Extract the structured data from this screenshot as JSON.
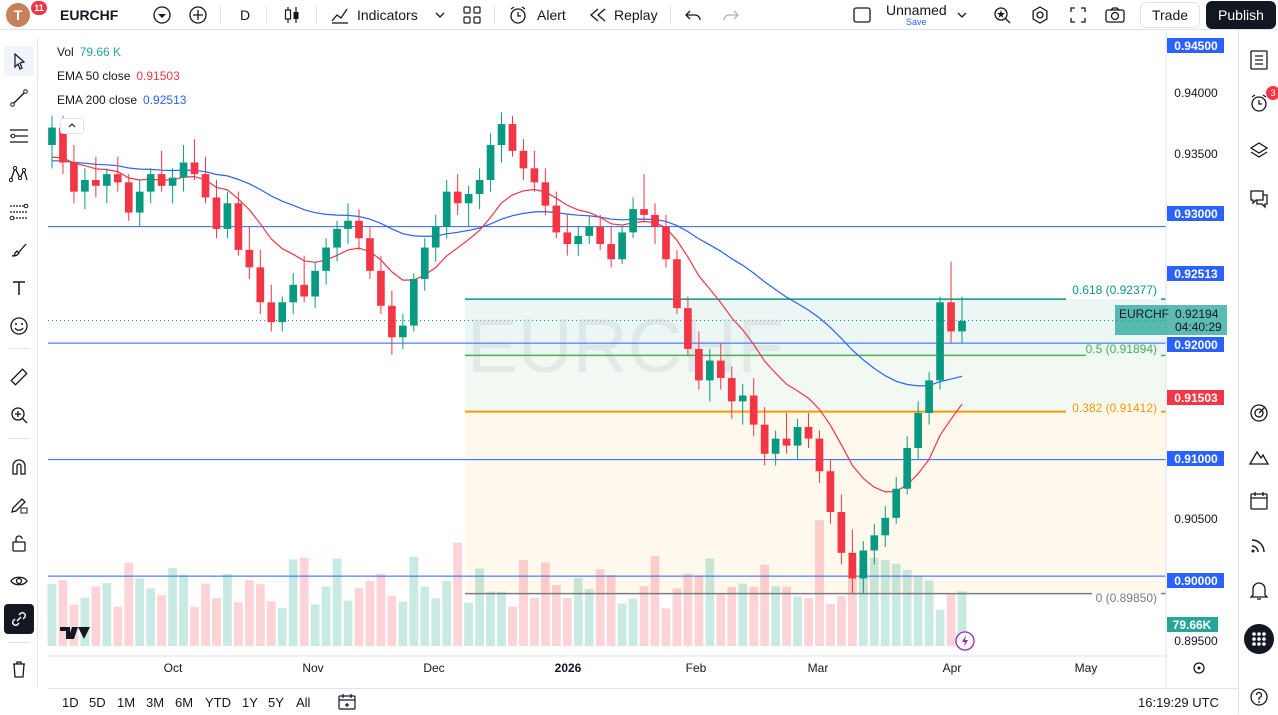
{
  "header": {
    "avatar_letter": "T",
    "notification_count": "11",
    "symbol": "EURCHF",
    "interval": "D",
    "indicators_label": "Indicators",
    "alert_label": "Alert",
    "replay_label": "Replay",
    "layout_name": "Unnamed",
    "layout_save": "Save",
    "trade_label": "Trade",
    "publish_label": "Publish"
  },
  "legend": {
    "vol_label": "Vol",
    "vol_value": "79.66 K",
    "ema50_label": "EMA 50 close",
    "ema50_value": "0.91503",
    "ema200_label": "EMA 200 close",
    "ema200_value": "0.92513"
  },
  "right_toolbar": {
    "alerts_badge": "3"
  },
  "watermark": "EURCHF",
  "price_axis": {
    "plain_labels": [
      "0.94000",
      "0.93500",
      "0.90500",
      "0.89500"
    ],
    "hline_labels": [
      "0.94500",
      "0.93000",
      "0.92000",
      "0.91000",
      "0.90000"
    ],
    "ema200_tag": "0.92513",
    "ema50_tag": "0.91503",
    "last_price_symbol": "EURCHF",
    "last_price": "0.92194",
    "countdown": "04:40:29",
    "volume_tag": "79.66K"
  },
  "fib_labels": {
    "f618": "0.618 (0.92377)",
    "f50": "0.5 (0.91894)",
    "f382": "0.382 (0.91412)",
    "f0": "0 (0.89850)"
  },
  "time_axis": [
    "Oct",
    "Nov",
    "Dec",
    "2026",
    "Feb",
    "Mar",
    "Apr",
    "May"
  ],
  "bottom_bar": {
    "ranges": [
      "1D",
      "5D",
      "1M",
      "3M",
      "6M",
      "YTD",
      "1Y",
      "5Y",
      "All"
    ],
    "clock": "16:19:29 UTC"
  },
  "colors": {
    "up": "#089981",
    "down": "#f23645",
    "ema50": "#f23645",
    "ema200": "#2962ff",
    "hline": "#2962ff",
    "fib618": "#089981",
    "fib50": "#4caf50",
    "fib382": "#ff9800",
    "fib0": "#787b86"
  },
  "chart_data": {
    "type": "candlestick",
    "symbol": "EURCHF",
    "interval": "1D",
    "y_range": [
      0.894,
      0.9455
    ],
    "x_months": [
      "Oct",
      "Nov",
      "Dec",
      "2026",
      "Feb",
      "Mar",
      "Apr",
      "May"
    ],
    "horizontal_levels": [
      0.945,
      0.93,
      0.92,
      0.91,
      0.9
    ],
    "fibonacci": [
      {
        "level": "0.618",
        "price": 0.92377
      },
      {
        "level": "0.5",
        "price": 0.91894
      },
      {
        "level": "0.382",
        "price": 0.91412
      },
      {
        "level": "0",
        "price": 0.8985
      }
    ],
    "ema50_last": 0.91503,
    "ema200_last": 0.92513,
    "last_price": 0.92194,
    "last_volume": "79.66K",
    "candles_approx": [
      [
        0.937,
        0.9395,
        0.935,
        0.9385
      ],
      [
        0.9385,
        0.9395,
        0.9345,
        0.9355
      ],
      [
        0.9355,
        0.937,
        0.932,
        0.933
      ],
      [
        0.933,
        0.935,
        0.9315,
        0.934
      ],
      [
        0.934,
        0.936,
        0.9325,
        0.9335
      ],
      [
        0.9335,
        0.935,
        0.932,
        0.9345
      ],
      [
        0.9345,
        0.936,
        0.933,
        0.9338
      ],
      [
        0.9338,
        0.9345,
        0.9305,
        0.9312
      ],
      [
        0.9312,
        0.934,
        0.93,
        0.933
      ],
      [
        0.933,
        0.935,
        0.932,
        0.9345
      ],
      [
        0.9345,
        0.9365,
        0.933,
        0.9335
      ],
      [
        0.9335,
        0.935,
        0.932,
        0.9342
      ],
      [
        0.9342,
        0.937,
        0.933,
        0.9355
      ],
      [
        0.9355,
        0.9375,
        0.934,
        0.9345
      ],
      [
        0.9345,
        0.936,
        0.932,
        0.9325
      ],
      [
        0.9325,
        0.934,
        0.929,
        0.9298
      ],
      [
        0.9298,
        0.933,
        0.929,
        0.932
      ],
      [
        0.932,
        0.933,
        0.9275,
        0.928
      ],
      [
        0.928,
        0.93,
        0.9255,
        0.9265
      ],
      [
        0.9265,
        0.928,
        0.9225,
        0.9235
      ],
      [
        0.9235,
        0.925,
        0.921,
        0.9218
      ],
      [
        0.9218,
        0.924,
        0.921,
        0.9235
      ],
      [
        0.9235,
        0.926,
        0.9225,
        0.925
      ],
      [
        0.925,
        0.9275,
        0.9235,
        0.924
      ],
      [
        0.924,
        0.927,
        0.923,
        0.9262
      ],
      [
        0.9262,
        0.929,
        0.925,
        0.9282
      ],
      [
        0.9282,
        0.9305,
        0.927,
        0.9298
      ],
      [
        0.9298,
        0.932,
        0.9285,
        0.9305
      ],
      [
        0.9305,
        0.9315,
        0.928,
        0.929
      ],
      [
        0.929,
        0.93,
        0.9255,
        0.9262
      ],
      [
        0.9262,
        0.9275,
        0.9225,
        0.9232
      ],
      [
        0.9232,
        0.9245,
        0.919,
        0.9205
      ],
      [
        0.9205,
        0.9225,
        0.9195,
        0.9215
      ],
      [
        0.9215,
        0.926,
        0.921,
        0.9255
      ],
      [
        0.9255,
        0.929,
        0.9245,
        0.9282
      ],
      [
        0.9282,
        0.931,
        0.927,
        0.93
      ],
      [
        0.93,
        0.934,
        0.929,
        0.933
      ],
      [
        0.933,
        0.9345,
        0.931,
        0.932
      ],
      [
        0.932,
        0.9335,
        0.93,
        0.9328
      ],
      [
        0.9328,
        0.935,
        0.9315,
        0.934
      ],
      [
        0.934,
        0.938,
        0.933,
        0.937
      ],
      [
        0.937,
        0.9398,
        0.9355,
        0.9388
      ],
      [
        0.9388,
        0.9395,
        0.936,
        0.9365
      ],
      [
        0.9365,
        0.9375,
        0.934,
        0.935
      ],
      [
        0.935,
        0.9365,
        0.933,
        0.9338
      ],
      [
        0.9338,
        0.935,
        0.931,
        0.9318
      ],
      [
        0.9318,
        0.933,
        0.929,
        0.9295
      ],
      [
        0.9295,
        0.931,
        0.9275,
        0.9285
      ],
      [
        0.9285,
        0.93,
        0.9275,
        0.9292
      ],
      [
        0.9292,
        0.931,
        0.9285,
        0.93
      ],
      [
        0.93,
        0.931,
        0.928,
        0.9285
      ],
      [
        0.9285,
        0.93,
        0.9265,
        0.9272
      ],
      [
        0.9272,
        0.93,
        0.9268,
        0.9295
      ],
      [
        0.9295,
        0.9325,
        0.929,
        0.9315
      ],
      [
        0.9315,
        0.9345,
        0.9305,
        0.931
      ],
      [
        0.931,
        0.932,
        0.9285,
        0.93
      ],
      [
        0.93,
        0.931,
        0.9265,
        0.9272
      ],
      [
        0.9272,
        0.928,
        0.9225,
        0.923
      ],
      [
        0.923,
        0.924,
        0.919,
        0.9195
      ],
      [
        0.9195,
        0.921,
        0.916,
        0.9168
      ],
      [
        0.9168,
        0.9195,
        0.915,
        0.9185
      ],
      [
        0.9185,
        0.92,
        0.916,
        0.917
      ],
      [
        0.917,
        0.918,
        0.9135,
        0.915
      ],
      [
        0.915,
        0.9165,
        0.913,
        0.9155
      ],
      [
        0.9155,
        0.917,
        0.912,
        0.913
      ],
      [
        0.913,
        0.9145,
        0.9095,
        0.9105
      ],
      [
        0.9105,
        0.9125,
        0.9095,
        0.9118
      ],
      [
        0.9118,
        0.914,
        0.9105,
        0.9112
      ],
      [
        0.9112,
        0.9135,
        0.91,
        0.9128
      ],
      [
        0.9128,
        0.914,
        0.911,
        0.9118
      ],
      [
        0.9118,
        0.9125,
        0.908,
        0.909
      ],
      [
        0.909,
        0.91,
        0.9045,
        0.9055
      ],
      [
        0.9055,
        0.907,
        0.901,
        0.902
      ],
      [
        0.902,
        0.904,
        0.8985,
        0.8998
      ],
      [
        0.8998,
        0.903,
        0.8985,
        0.9022
      ],
      [
        0.9022,
        0.9045,
        0.901,
        0.9035
      ],
      [
        0.9035,
        0.906,
        0.9025,
        0.905
      ],
      [
        0.905,
        0.9085,
        0.9045,
        0.9075
      ],
      [
        0.9075,
        0.912,
        0.907,
        0.911
      ],
      [
        0.911,
        0.915,
        0.91,
        0.914
      ],
      [
        0.914,
        0.9175,
        0.913,
        0.9168
      ],
      [
        0.9168,
        0.924,
        0.916,
        0.9235
      ],
      [
        0.9235,
        0.927,
        0.92,
        0.921
      ],
      [
        0.921,
        0.924,
        0.92,
        0.9219
      ]
    ]
  }
}
